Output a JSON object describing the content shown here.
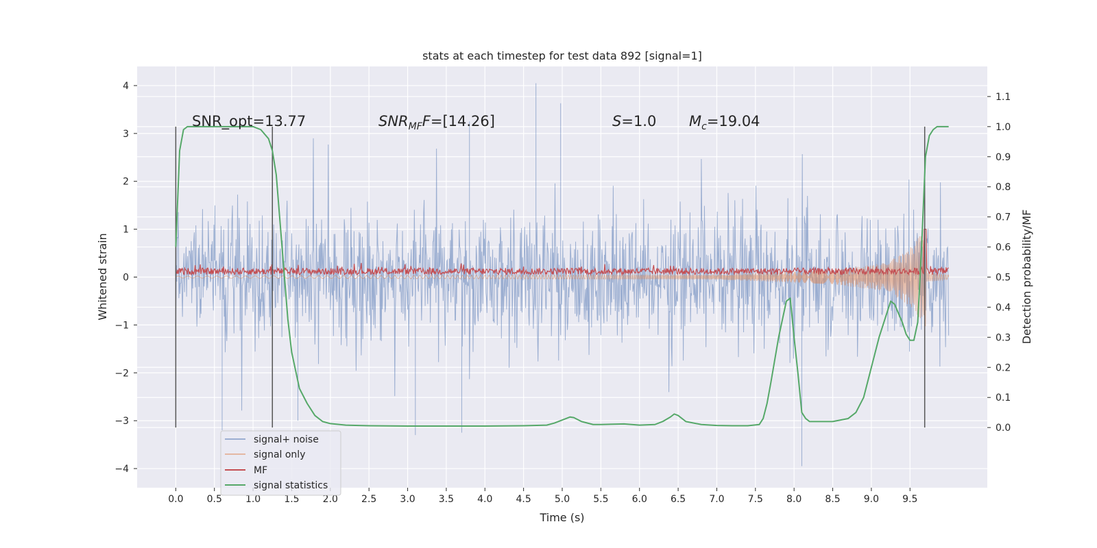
{
  "chart_data": {
    "type": "line",
    "title": "stats at each timestep for test data 892 [signal=1]",
    "xlabel": "Time (s)",
    "ylabel_left": "Whitened strain",
    "ylabel_right": "Detection probability/MF",
    "xlim": [
      -0.5,
      10.5
    ],
    "ylim_left": [
      -4.4,
      4.4
    ],
    "ylim_right": [
      -0.2,
      1.2
    ],
    "x_ticks": [
      "0.0",
      "0.5",
      "1.0",
      "1.5",
      "2.0",
      "2.5",
      "3.0",
      "3.5",
      "4.0",
      "4.5",
      "5.0",
      "5.5",
      "6.0",
      "6.5",
      "7.0",
      "7.5",
      "8.0",
      "8.5",
      "9.0",
      "9.5"
    ],
    "y_left_ticks": [
      "4",
      "3",
      "2",
      "1",
      "0",
      "−1",
      "−2",
      "−3",
      "−4"
    ],
    "y_right_ticks": [
      "1.1",
      "1.0",
      "0.9",
      "0.8",
      "0.7",
      "0.6",
      "0.5",
      "0.4",
      "0.3",
      "0.2",
      "0.1",
      "0.0"
    ],
    "grid": true,
    "legend_position": "lower-left",
    "annotations": {
      "snr_opt": "SNR_opt=13.77",
      "snr_mf_label": "SNR",
      "snr_mf_sub": "MF",
      "snr_mf_value": "=[14.26]",
      "s_label": "S",
      "s_value": "=1.0",
      "mc_label": "M",
      "mc_sub": "c",
      "mc_value": "=19.04"
    },
    "vertical_markers": [
      0.0,
      1.25,
      9.69
    ],
    "series": [
      {
        "name": "signal+ noise",
        "color": "#4c72b0",
        "axis": "left",
        "amplitude_typical": 1.3,
        "x_range": [
          0.0,
          10.0
        ],
        "peaks": [
          [
            4.66,
            4.05
          ],
          [
            4.98,
            3.63
          ],
          [
            3.8,
            3.25
          ],
          [
            8.1,
            -3.95
          ],
          [
            3.1,
            -3.3
          ],
          [
            3.7,
            -3.25
          ],
          [
            0.6,
            -3.2
          ],
          [
            1.58,
            -3.0
          ]
        ]
      },
      {
        "name": "signal only",
        "color": "#dd8452",
        "axis": "left",
        "envelope": [
          [
            0.0,
            0.02
          ],
          [
            7.0,
            0.05
          ],
          [
            8.5,
            0.15
          ],
          [
            9.2,
            0.3
          ],
          [
            9.5,
            0.6
          ],
          [
            9.7,
            1.05
          ],
          [
            9.72,
            0.1
          ],
          [
            10.0,
            0.05
          ]
        ]
      },
      {
        "name": "MF",
        "color": "#c44e52",
        "axis": "left",
        "level": 0.12,
        "x_range": [
          0.0,
          10.0
        ]
      },
      {
        "name": "signal statistics",
        "color": "#55a868",
        "axis": "right",
        "x": [
          0.0,
          0.05,
          0.1,
          0.15,
          0.2,
          0.3,
          0.5,
          0.8,
          1.0,
          1.1,
          1.2,
          1.25,
          1.3,
          1.35,
          1.4,
          1.45,
          1.5,
          1.6,
          1.7,
          1.8,
          1.9,
          2.0,
          2.2,
          2.5,
          3.0,
          3.5,
          4.0,
          4.5,
          4.8,
          4.9,
          5.0,
          5.1,
          5.15,
          5.25,
          5.4,
          5.5,
          5.8,
          6.0,
          6.2,
          6.3,
          6.4,
          6.45,
          6.5,
          6.6,
          6.8,
          7.0,
          7.2,
          7.4,
          7.55,
          7.6,
          7.65,
          7.7,
          7.8,
          7.9,
          7.95,
          8.0,
          8.05,
          8.1,
          8.15,
          8.2,
          8.3,
          8.5,
          8.7,
          8.8,
          8.9,
          9.0,
          9.1,
          9.2,
          9.25,
          9.3,
          9.35,
          9.4,
          9.45,
          9.5,
          9.55,
          9.6,
          9.65,
          9.7,
          9.75,
          9.8,
          9.85,
          9.9,
          9.95,
          10.0
        ],
        "y": [
          0.6,
          0.92,
          0.99,
          1.0,
          1.0,
          1.0,
          1.0,
          1.0,
          1.0,
          0.99,
          0.96,
          0.92,
          0.84,
          0.68,
          0.52,
          0.36,
          0.25,
          0.13,
          0.08,
          0.04,
          0.02,
          0.013,
          0.008,
          0.006,
          0.005,
          0.005,
          0.005,
          0.006,
          0.008,
          0.015,
          0.025,
          0.035,
          0.033,
          0.02,
          0.01,
          0.01,
          0.012,
          0.008,
          0.01,
          0.02,
          0.035,
          0.045,
          0.04,
          0.02,
          0.01,
          0.007,
          0.006,
          0.006,
          0.01,
          0.03,
          0.08,
          0.15,
          0.3,
          0.42,
          0.43,
          0.3,
          0.18,
          0.05,
          0.03,
          0.02,
          0.02,
          0.02,
          0.03,
          0.05,
          0.1,
          0.2,
          0.3,
          0.38,
          0.42,
          0.41,
          0.38,
          0.35,
          0.31,
          0.29,
          0.29,
          0.35,
          0.6,
          0.9,
          0.97,
          0.99,
          1.0,
          1.0,
          1.0,
          1.0
        ]
      }
    ]
  }
}
